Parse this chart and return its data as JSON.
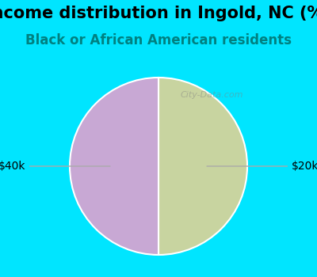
{
  "title": "Income distribution in Ingold, NC (%)",
  "subtitle": "Black or African American residents",
  "slices": [
    50,
    50
  ],
  "slice_colors": [
    "#c8d4a0",
    "#c8a8d4"
  ],
  "labels": [
    "$40k",
    "$20k"
  ],
  "background_color": "#00e5ff",
  "chart_bg_color": "#e8f8f0",
  "title_color": "#000000",
  "subtitle_color": "#008080",
  "label_color": "#000000",
  "line_color": "#aaaaaa",
  "title_fontsize": 15,
  "subtitle_fontsize": 12,
  "label_fontsize": 10,
  "watermark": "City-Data.com"
}
